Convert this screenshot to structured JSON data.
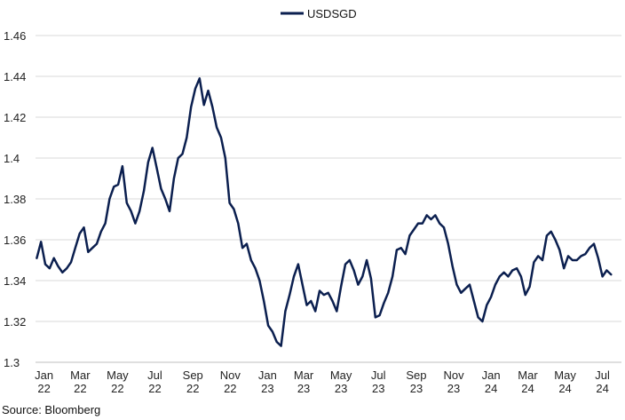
{
  "chart_data": {
    "type": "line",
    "series": [
      {
        "name": "USDSGD",
        "color": "#0b1f4f",
        "points": [
          [
            "2022-01-03",
            1.351
          ],
          [
            "2022-01-10",
            1.359
          ],
          [
            "2022-01-17",
            1.348
          ],
          [
            "2022-01-24",
            1.346
          ],
          [
            "2022-01-31",
            1.351
          ],
          [
            "2022-02-07",
            1.347
          ],
          [
            "2022-02-14",
            1.344
          ],
          [
            "2022-02-21",
            1.346
          ],
          [
            "2022-02-28",
            1.349
          ],
          [
            "2022-03-07",
            1.356
          ],
          [
            "2022-03-14",
            1.363
          ],
          [
            "2022-03-21",
            1.366
          ],
          [
            "2022-03-28",
            1.354
          ],
          [
            "2022-04-04",
            1.356
          ],
          [
            "2022-04-11",
            1.358
          ],
          [
            "2022-04-18",
            1.364
          ],
          [
            "2022-04-25",
            1.368
          ],
          [
            "2022-05-02",
            1.38
          ],
          [
            "2022-05-09",
            1.386
          ],
          [
            "2022-05-16",
            1.387
          ],
          [
            "2022-05-23",
            1.396
          ],
          [
            "2022-05-30",
            1.378
          ],
          [
            "2022-06-06",
            1.374
          ],
          [
            "2022-06-13",
            1.368
          ],
          [
            "2022-06-20",
            1.374
          ],
          [
            "2022-06-27",
            1.384
          ],
          [
            "2022-07-04",
            1.398
          ],
          [
            "2022-07-11",
            1.405
          ],
          [
            "2022-07-18",
            1.395
          ],
          [
            "2022-07-25",
            1.385
          ],
          [
            "2022-08-01",
            1.38
          ],
          [
            "2022-08-08",
            1.374
          ],
          [
            "2022-08-15",
            1.39
          ],
          [
            "2022-08-22",
            1.4
          ],
          [
            "2022-08-29",
            1.402
          ],
          [
            "2022-09-05",
            1.41
          ],
          [
            "2022-09-12",
            1.425
          ],
          [
            "2022-09-19",
            1.434
          ],
          [
            "2022-09-26",
            1.439
          ],
          [
            "2022-10-03",
            1.426
          ],
          [
            "2022-10-10",
            1.433
          ],
          [
            "2022-10-17",
            1.425
          ],
          [
            "2022-10-24",
            1.415
          ],
          [
            "2022-10-31",
            1.41
          ],
          [
            "2022-11-07",
            1.4
          ],
          [
            "2022-11-14",
            1.378
          ],
          [
            "2022-11-21",
            1.375
          ],
          [
            "2022-11-28",
            1.368
          ],
          [
            "2022-12-05",
            1.356
          ],
          [
            "2022-12-12",
            1.358
          ],
          [
            "2022-12-19",
            1.35
          ],
          [
            "2022-12-26",
            1.346
          ],
          [
            "2023-01-02",
            1.34
          ],
          [
            "2023-01-09",
            1.33
          ],
          [
            "2023-01-16",
            1.318
          ],
          [
            "2023-01-23",
            1.315
          ],
          [
            "2023-01-30",
            1.31
          ],
          [
            "2023-02-06",
            1.308
          ],
          [
            "2023-02-13",
            1.325
          ],
          [
            "2023-02-20",
            1.333
          ],
          [
            "2023-02-27",
            1.342
          ],
          [
            "2023-03-06",
            1.348
          ],
          [
            "2023-03-13",
            1.338
          ],
          [
            "2023-03-20",
            1.328
          ],
          [
            "2023-03-27",
            1.33
          ],
          [
            "2023-04-03",
            1.325
          ],
          [
            "2023-04-10",
            1.335
          ],
          [
            "2023-04-17",
            1.333
          ],
          [
            "2023-04-24",
            1.334
          ],
          [
            "2023-05-01",
            1.33
          ],
          [
            "2023-05-08",
            1.325
          ],
          [
            "2023-05-15",
            1.337
          ],
          [
            "2023-05-22",
            1.348
          ],
          [
            "2023-05-29",
            1.35
          ],
          [
            "2023-06-05",
            1.345
          ],
          [
            "2023-06-12",
            1.338
          ],
          [
            "2023-06-19",
            1.342
          ],
          [
            "2023-06-26",
            1.35
          ],
          [
            "2023-07-03",
            1.341
          ],
          [
            "2023-07-10",
            1.322
          ],
          [
            "2023-07-17",
            1.323
          ],
          [
            "2023-07-24",
            1.329
          ],
          [
            "2023-07-31",
            1.334
          ],
          [
            "2023-08-07",
            1.342
          ],
          [
            "2023-08-14",
            1.355
          ],
          [
            "2023-08-21",
            1.356
          ],
          [
            "2023-08-28",
            1.353
          ],
          [
            "2023-09-04",
            1.362
          ],
          [
            "2023-09-11",
            1.365
          ],
          [
            "2023-09-18",
            1.368
          ],
          [
            "2023-09-25",
            1.368
          ],
          [
            "2023-10-02",
            1.372
          ],
          [
            "2023-10-09",
            1.37
          ],
          [
            "2023-10-16",
            1.372
          ],
          [
            "2023-10-23",
            1.368
          ],
          [
            "2023-10-30",
            1.366
          ],
          [
            "2023-11-06",
            1.358
          ],
          [
            "2023-11-13",
            1.347
          ],
          [
            "2023-11-20",
            1.338
          ],
          [
            "2023-11-27",
            1.334
          ],
          [
            "2023-12-04",
            1.336
          ],
          [
            "2023-12-11",
            1.338
          ],
          [
            "2023-12-18",
            1.33
          ],
          [
            "2023-12-25",
            1.322
          ],
          [
            "2024-01-01",
            1.32
          ],
          [
            "2024-01-08",
            1.328
          ],
          [
            "2024-01-15",
            1.332
          ],
          [
            "2024-01-22",
            1.338
          ],
          [
            "2024-01-29",
            1.342
          ],
          [
            "2024-02-05",
            1.344
          ],
          [
            "2024-02-12",
            1.342
          ],
          [
            "2024-02-19",
            1.345
          ],
          [
            "2024-02-26",
            1.346
          ],
          [
            "2024-03-04",
            1.342
          ],
          [
            "2024-03-11",
            1.333
          ],
          [
            "2024-03-18",
            1.337
          ],
          [
            "2024-03-25",
            1.349
          ],
          [
            "2024-04-01",
            1.352
          ],
          [
            "2024-04-08",
            1.35
          ],
          [
            "2024-04-15",
            1.362
          ],
          [
            "2024-04-22",
            1.364
          ],
          [
            "2024-04-29",
            1.36
          ],
          [
            "2024-05-06",
            1.355
          ],
          [
            "2024-05-13",
            1.346
          ],
          [
            "2024-05-20",
            1.352
          ],
          [
            "2024-05-27",
            1.35
          ],
          [
            "2024-06-03",
            1.35
          ],
          [
            "2024-06-10",
            1.352
          ],
          [
            "2024-06-17",
            1.353
          ],
          [
            "2024-06-24",
            1.356
          ],
          [
            "2024-07-01",
            1.358
          ],
          [
            "2024-07-08",
            1.351
          ],
          [
            "2024-07-15",
            1.342
          ],
          [
            "2024-07-22",
            1.345
          ],
          [
            "2024-07-29",
            1.343
          ]
        ]
      }
    ],
    "x_ticks": [
      {
        "date": "2022-01-15",
        "label": [
          "Jan",
          "22"
        ]
      },
      {
        "date": "2022-03-15",
        "label": [
          "Mar",
          "22"
        ]
      },
      {
        "date": "2022-05-15",
        "label": [
          "May",
          "22"
        ]
      },
      {
        "date": "2022-07-15",
        "label": [
          "Jul",
          "22"
        ]
      },
      {
        "date": "2022-09-15",
        "label": [
          "Sep",
          "22"
        ]
      },
      {
        "date": "2022-11-15",
        "label": [
          "Nov",
          "22"
        ]
      },
      {
        "date": "2023-01-15",
        "label": [
          "Jan",
          "23"
        ]
      },
      {
        "date": "2023-03-15",
        "label": [
          "Mar",
          "23"
        ]
      },
      {
        "date": "2023-05-15",
        "label": [
          "May",
          "23"
        ]
      },
      {
        "date": "2023-07-15",
        "label": [
          "Jul",
          "23"
        ]
      },
      {
        "date": "2023-09-15",
        "label": [
          "Sep",
          "23"
        ]
      },
      {
        "date": "2023-11-15",
        "label": [
          "Nov",
          "23"
        ]
      },
      {
        "date": "2024-01-15",
        "label": [
          "Jan",
          "24"
        ]
      },
      {
        "date": "2024-03-15",
        "label": [
          "Mar",
          "24"
        ]
      },
      {
        "date": "2024-05-15",
        "label": [
          "May",
          "24"
        ]
      },
      {
        "date": "2024-07-15",
        "label": [
          "Jul",
          "24"
        ]
      }
    ],
    "y_ticks": [
      "1.3",
      "1.32",
      "1.34",
      "1.36",
      "1.38",
      "1.4",
      "1.42",
      "1.44",
      "1.46"
    ],
    "ylim": [
      1.3,
      1.46
    ],
    "xlim": [
      "2022-01-01",
      "2024-08-15"
    ],
    "grid": "horizontal",
    "legend": "top-center",
    "title": "",
    "xlabel": "",
    "ylabel": ""
  },
  "source_note": "Source: Bloomberg",
  "colors": {
    "line": "#0b1f4f",
    "grid": "#d9d9d9",
    "axis": "#bfbfbf",
    "text": "#222222"
  }
}
